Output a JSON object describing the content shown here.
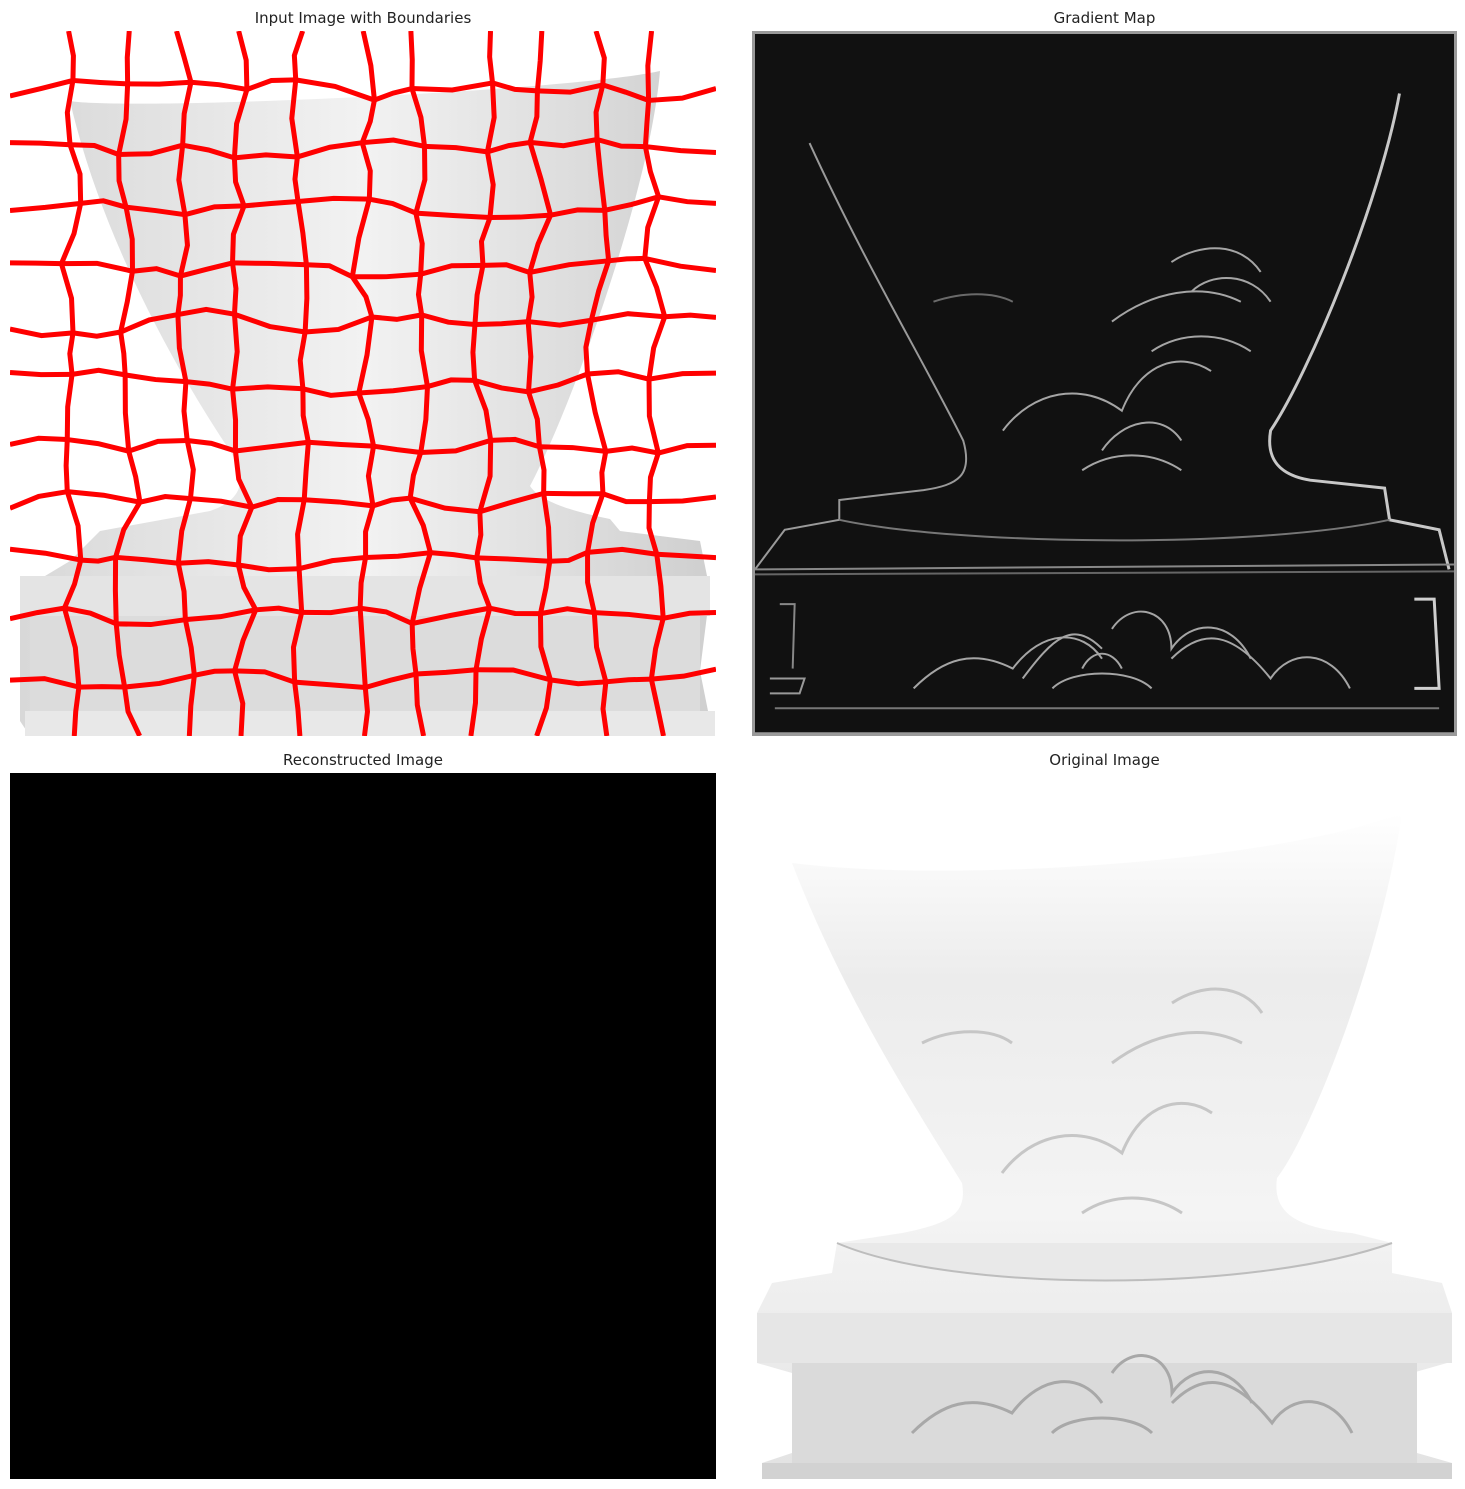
{
  "figure": {
    "panels": [
      {
        "title": "Input Image with Boundaries",
        "overlay_color": "#ff0000"
      },
      {
        "title": "Gradient Map",
        "background": "#111111"
      },
      {
        "title": "Reconstructed Image",
        "background": "#000000"
      },
      {
        "title": "Original Image",
        "background": "#ffffff"
      }
    ]
  }
}
